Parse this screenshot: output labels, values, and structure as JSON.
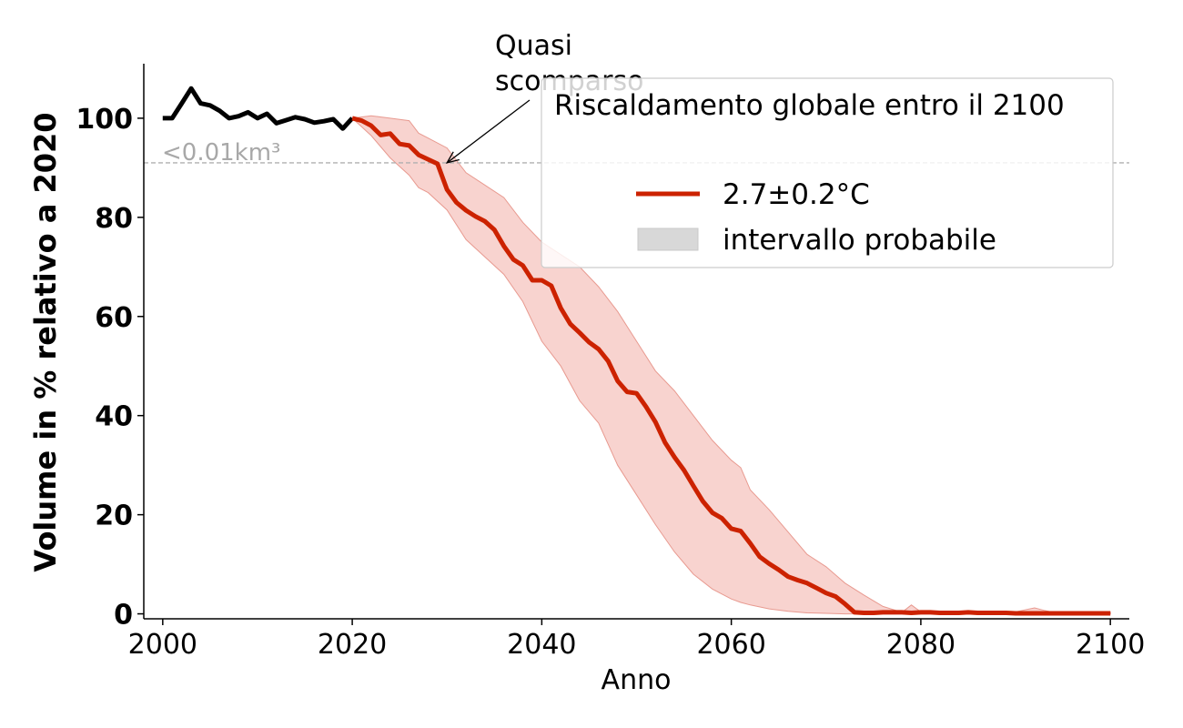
{
  "chart_data": {
    "type": "line",
    "xlabel": "Anno",
    "ylabel": "Volume in % relativo a 2020",
    "xlim": [
      1998,
      2102
    ],
    "ylim": [
      -1,
      111
    ],
    "xticks": [
      2000,
      2020,
      2040,
      2060,
      2080,
      2100
    ],
    "yticks": [
      0,
      20,
      40,
      60,
      80,
      100
    ],
    "grid": false,
    "legend": {
      "title": "Riscaldamento globale entro il 2100",
      "placement": "top-right",
      "entries": [
        "2.7±0.2°C",
        "intervallo probabile"
      ]
    },
    "threshold": {
      "y": 91,
      "label": "<0.01km³"
    },
    "annotation": {
      "text_lines": [
        "Quasi",
        "scomparso"
      ],
      "x": 2030,
      "y": 91
    },
    "colors": {
      "historical": "#000000",
      "projection": "#cc2200",
      "band_fill": "#f4bcb5",
      "band_edge": "#e89a90",
      "threshold": "#b0b0b0"
    },
    "series": [
      {
        "role": "historical",
        "x": [
          2000,
          2001,
          2002,
          2003,
          2004,
          2005,
          2006,
          2007,
          2008,
          2009,
          2010,
          2011,
          2012,
          2013,
          2014,
          2015,
          2016,
          2017,
          2018,
          2019,
          2020
        ],
        "values": [
          100,
          100,
          103,
          106,
          103,
          102.6,
          101.5,
          100,
          100.4,
          101.2,
          100,
          100.9,
          99,
          99.6,
          100.2,
          99.8,
          99.1,
          99.4,
          99.8,
          97.9,
          100
        ]
      },
      {
        "role": "projection",
        "name": "2.7±0.2°C",
        "x": [
          2020,
          2021,
          2022,
          2023,
          2024,
          2025,
          2026,
          2027,
          2028,
          2029,
          2030,
          2031,
          2032,
          2033,
          2034,
          2035,
          2036,
          2037,
          2038,
          2039,
          2040,
          2041,
          2042,
          2043,
          2044,
          2045,
          2046,
          2047,
          2048,
          2049,
          2050,
          2051,
          2052,
          2053,
          2054,
          2055,
          2056,
          2057,
          2058,
          2059,
          2060,
          2061,
          2062,
          2063,
          2064,
          2065,
          2066,
          2067,
          2068,
          2069,
          2070,
          2071,
          2072,
          2073,
          2074,
          2075,
          2076,
          2077,
          2078,
          2079,
          2080,
          2081,
          2082,
          2083,
          2084,
          2085,
          2086,
          2087,
          2088,
          2089,
          2090,
          2091,
          2092,
          2093,
          2094,
          2095,
          2096,
          2097,
          2098,
          2099,
          2100
        ],
        "values": [
          100,
          99.5,
          98.5,
          96.6,
          96.9,
          94.8,
          94.5,
          92.6,
          91.7,
          90.8,
          85.6,
          83,
          81.4,
          80.2,
          79.2,
          77.5,
          74.2,
          71.5,
          70.3,
          67.3,
          67.3,
          66.2,
          61.7,
          58.5,
          56.7,
          54.8,
          53.4,
          51,
          47,
          44.8,
          44.5,
          41.8,
          38.7,
          34.6,
          31.6,
          29,
          25.8,
          22.7,
          20.4,
          19.3,
          17.2,
          16.7,
          14.2,
          11.5,
          10.1,
          8.9,
          7.5,
          6.8,
          6.2,
          5.2,
          4.2,
          3.5,
          2,
          0.3,
          0.2,
          0.2,
          0.3,
          0.3,
          0.3,
          0.2,
          0.3,
          0.3,
          0.2,
          0.2,
          0.2,
          0.3,
          0.2,
          0.2,
          0.2,
          0.2,
          0.1,
          0.1,
          0.1,
          0.1,
          0.1,
          0.1,
          0.1,
          0.1,
          0.1,
          0.1,
          0.1
        ]
      },
      {
        "role": "band",
        "name": "intervallo probabile",
        "x": [
          2020,
          2022,
          2024,
          2026,
          2027,
          2028,
          2030,
          2032,
          2034,
          2036,
          2038,
          2040,
          2042,
          2044,
          2046,
          2048,
          2050,
          2052,
          2054,
          2056,
          2058,
          2060,
          2061,
          2062,
          2064,
          2066,
          2068,
          2070,
          2072,
          2074,
          2076,
          2078,
          2079,
          2080,
          2082,
          2084,
          2086,
          2088,
          2090,
          2092,
          2093,
          2094,
          2096,
          2098,
          2100
        ],
        "upper": [
          100,
          100.5,
          100,
          99.5,
          97,
          96,
          94,
          89,
          86.5,
          84,
          79,
          75,
          72.5,
          70,
          66,
          61,
          55,
          49,
          45,
          40,
          35,
          31,
          29.5,
          25,
          21,
          16.5,
          12,
          9.5,
          6.2,
          3.8,
          1.5,
          0.3,
          1.8,
          0.4,
          0.3,
          0.4,
          0.3,
          0.3,
          0.4,
          1.2,
          0.7,
          0.3,
          0.3,
          0.3,
          0.3
        ],
        "lower": [
          100,
          96.5,
          92,
          88.5,
          86,
          85,
          81.5,
          75.5,
          72,
          68.5,
          63,
          55,
          50,
          43,
          38.5,
          30,
          24,
          18,
          12.5,
          8,
          5,
          3,
          2.3,
          1.8,
          1,
          0.5,
          0.2,
          0.1,
          0,
          0,
          0,
          0,
          0,
          0,
          0,
          0,
          0,
          0,
          0,
          0,
          0,
          0,
          0,
          0,
          0
        ]
      }
    ]
  }
}
